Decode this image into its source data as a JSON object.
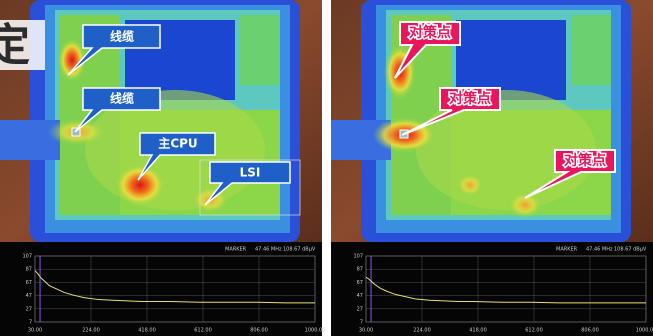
{
  "left_panel": {
    "heading_char": "定",
    "callouts": [
      "线缆",
      "线缆",
      "主CPU",
      "LSI"
    ]
  },
  "right_panel": {
    "callouts": [
      "对策点",
      "对策点",
      "对策点"
    ]
  },
  "spectra": [
    {
      "type": "line",
      "marker_title": "MARKER",
      "marker": {
        "value": 47.46,
        "label": "47.46 MHz"
      },
      "marker_level": "108.67 dBμV",
      "color": "#e8e070",
      "xlim": [
        30,
        1000
      ],
      "ylim": [
        7,
        107
      ],
      "xticks": [
        {
          "value": 30,
          "label": "30.00"
        },
        {
          "value": 224,
          "label": "224.00"
        },
        {
          "value": 418,
          "label": "418.00"
        },
        {
          "value": 612,
          "label": "612.00"
        },
        {
          "value": 806,
          "label": "806.00"
        },
        {
          "value": 1000,
          "label": "1000.00"
        }
      ],
      "yticks": [
        7,
        27,
        47,
        67,
        87,
        107
      ],
      "x": [
        30,
        40,
        50,
        60,
        80,
        100,
        130,
        160,
        200,
        250,
        300,
        350,
        400,
        500,
        600,
        700,
        800,
        900,
        1000
      ],
      "values": [
        85,
        80,
        74,
        70,
        62,
        58,
        52,
        48,
        44,
        41,
        40,
        39,
        38,
        38,
        37,
        37,
        37,
        36,
        36
      ]
    },
    {
      "type": "line",
      "marker_title": "MARKER",
      "marker": {
        "value": 47.46,
        "label": "47.46 MHz"
      },
      "marker_level": "108.67 dBμV",
      "color": "#e8e070",
      "xlim": [
        30,
        1000
      ],
      "ylim": [
        7,
        107
      ],
      "xticks": [
        {
          "value": 30,
          "label": "30.00"
        },
        {
          "value": 224,
          "label": "224.00"
        },
        {
          "value": 418,
          "label": "418.00"
        },
        {
          "value": 612,
          "label": "612.00"
        },
        {
          "value": 806,
          "label": "806.00"
        },
        {
          "value": 1000,
          "label": "1000.00"
        }
      ],
      "yticks": [
        7,
        27,
        47,
        67,
        87,
        107
      ],
      "x": [
        30,
        40,
        50,
        60,
        80,
        100,
        130,
        160,
        200,
        250,
        300,
        350,
        400,
        500,
        600,
        700,
        800,
        900,
        1000
      ],
      "values": [
        75,
        72,
        68,
        64,
        58,
        54,
        49,
        46,
        42,
        40,
        39,
        38,
        38,
        37,
        37,
        36,
        36,
        36,
        36
      ]
    }
  ]
}
